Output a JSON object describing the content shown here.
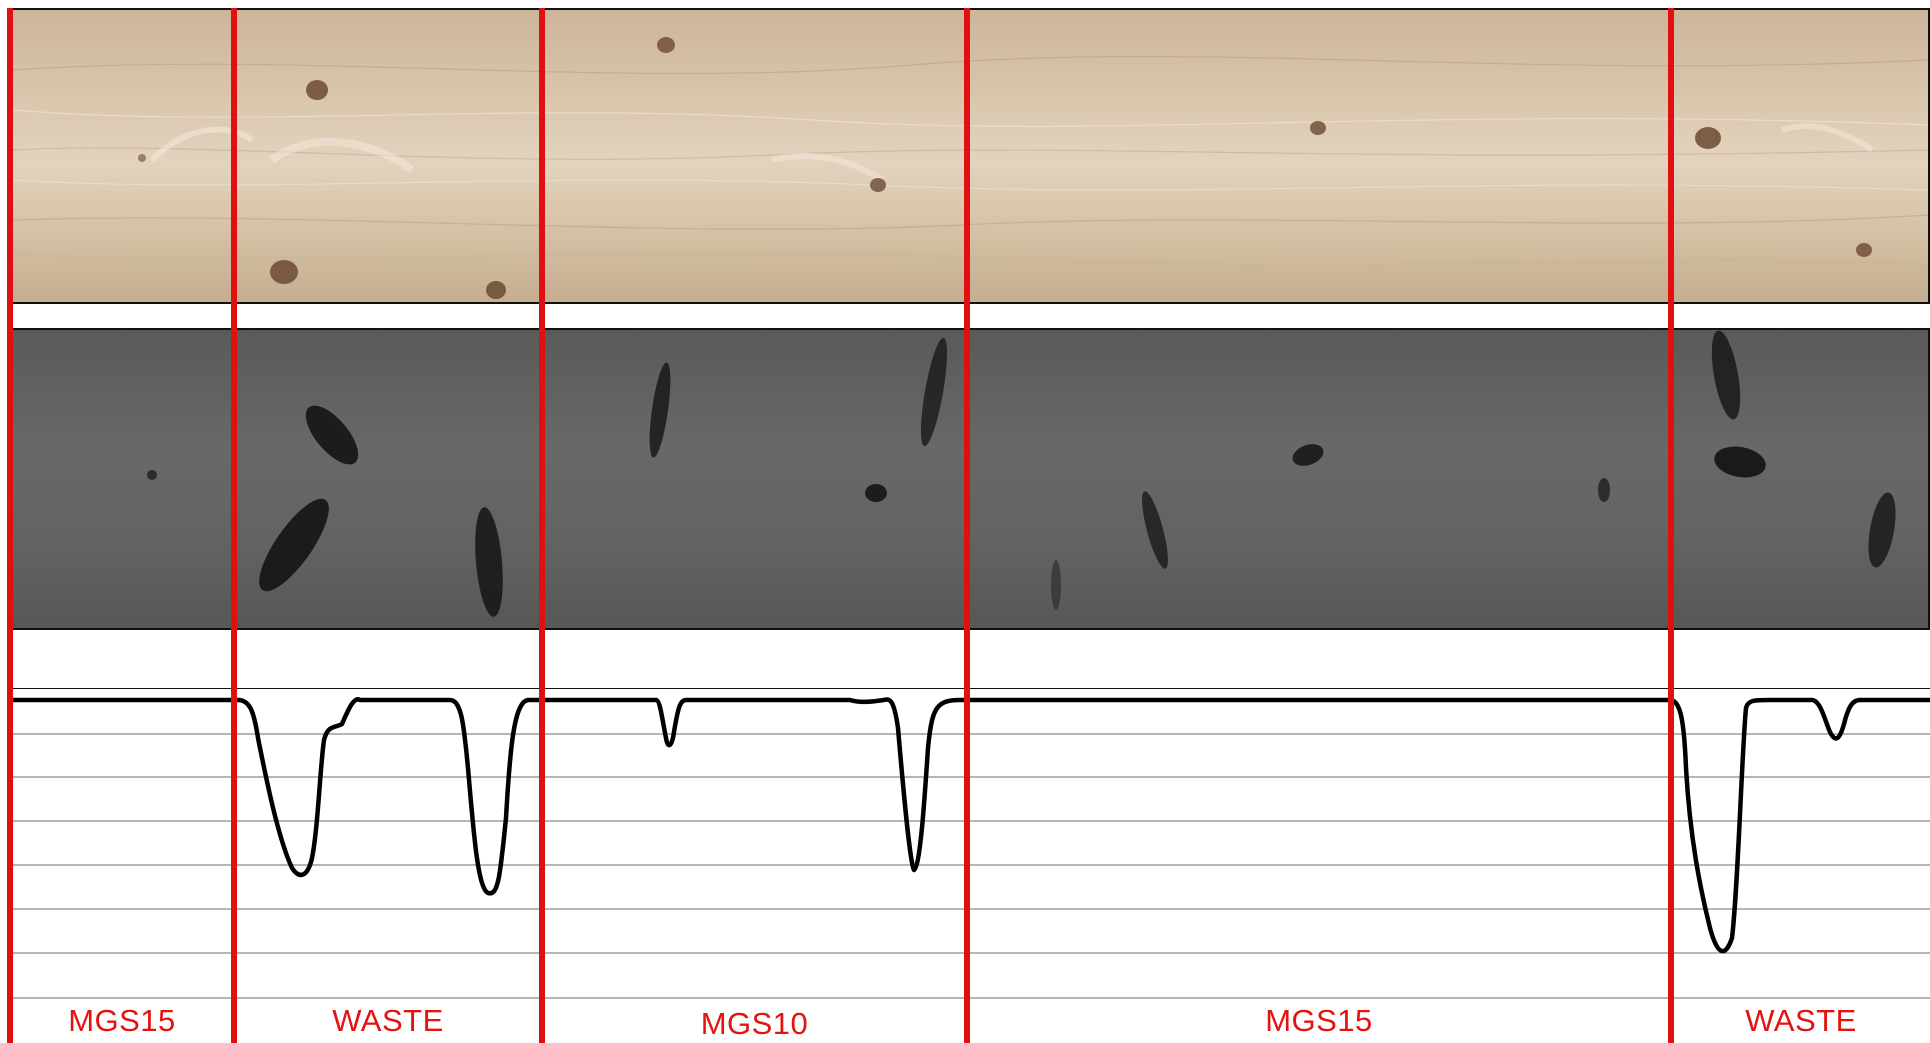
{
  "grades": [
    {
      "label": "MGS15"
    },
    {
      "label": "WASTE"
    },
    {
      "label": "MGS10"
    },
    {
      "label": "MGS15"
    },
    {
      "label": "WASTE"
    }
  ],
  "colors": {
    "cut_line": "#e01010",
    "grade_text": "#e3140f",
    "profile_line": "#000000",
    "grid_line": "#808080"
  },
  "icons": {
    "wood_image": "wood-board-photo",
    "xray_image": "xray-scan-image"
  }
}
